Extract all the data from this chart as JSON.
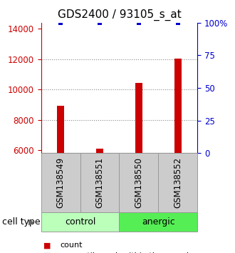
{
  "title": "GDS2400 / 93105_s_at",
  "samples": [
    "GSM138549",
    "GSM138551",
    "GSM138550",
    "GSM138552"
  ],
  "count_values": [
    8900,
    6100,
    10450,
    12050
  ],
  "percentile_values": [
    100,
    100,
    100,
    100
  ],
  "ylim_left": [
    5800,
    14400
  ],
  "ylim_right": [
    0,
    100
  ],
  "yticks_left": [
    6000,
    8000,
    10000,
    12000,
    14000
  ],
  "yticks_right": [
    0,
    25,
    50,
    75,
    100
  ],
  "bar_color": "#cc0000",
  "dot_color": "#0000cc",
  "bar_width": 0.18,
  "group_colors_control": "#bbffbb",
  "group_colors_anergic": "#55ee55",
  "sample_box_color": "#cccccc",
  "sample_box_edge_color": "#999999",
  "dotted_line_color": "#888888",
  "x_positions": [
    1,
    2,
    3,
    4
  ],
  "xlim": [
    0.5,
    4.5
  ],
  "grid_lines": [
    8000,
    10000,
    12000
  ],
  "title_fontsize": 11,
  "tick_fontsize": 8.5,
  "sample_fontsize": 8.5,
  "group_fontsize": 9,
  "legend_fontsize": 8,
  "cell_type_fontsize": 9
}
